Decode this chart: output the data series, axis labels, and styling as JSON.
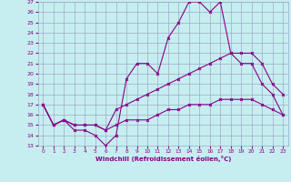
{
  "xlabel": "Windchill (Refroidissement éolien,°C)",
  "xlim": [
    -0.5,
    23.5
  ],
  "ylim": [
    13,
    27
  ],
  "xticks": [
    0,
    1,
    2,
    3,
    4,
    5,
    6,
    7,
    8,
    9,
    10,
    11,
    12,
    13,
    14,
    15,
    16,
    17,
    18,
    19,
    20,
    21,
    22,
    23
  ],
  "yticks": [
    13,
    14,
    15,
    16,
    17,
    18,
    19,
    20,
    21,
    22,
    23,
    24,
    25,
    26,
    27
  ],
  "bg_color": "#c6eef0",
  "grid_color": "#a0a8c8",
  "line_color": "#880088",
  "line1_x": [
    0,
    1,
    2,
    3,
    4,
    5,
    6,
    7,
    8,
    9,
    10,
    11,
    12,
    13,
    14,
    15,
    16,
    17,
    18,
    19,
    20,
    21,
    22,
    23
  ],
  "line1_y": [
    17,
    15,
    15.5,
    14.5,
    14.5,
    14,
    13,
    14,
    19.5,
    21,
    21,
    20,
    23.5,
    25,
    27,
    27,
    26,
    27,
    22,
    21,
    21,
    19,
    18,
    16
  ],
  "line2_x": [
    0,
    1,
    2,
    3,
    4,
    5,
    6,
    7,
    8,
    9,
    10,
    11,
    12,
    13,
    14,
    15,
    16,
    17,
    18,
    19,
    20,
    21,
    22,
    23
  ],
  "line2_y": [
    17,
    15,
    15.5,
    15,
    15,
    15,
    14.5,
    16.5,
    17,
    17.5,
    18,
    18.5,
    19,
    19.5,
    20,
    20.5,
    21,
    21.5,
    22,
    22,
    22,
    21,
    19,
    18
  ],
  "line3_x": [
    0,
    1,
    2,
    3,
    4,
    5,
    6,
    7,
    8,
    9,
    10,
    11,
    12,
    13,
    14,
    15,
    16,
    17,
    18,
    19,
    20,
    21,
    22,
    23
  ],
  "line3_y": [
    17,
    15,
    15.5,
    15,
    15,
    15,
    14.5,
    15,
    15.5,
    15.5,
    15.5,
    16,
    16.5,
    16.5,
    17,
    17,
    17,
    17.5,
    17.5,
    17.5,
    17.5,
    17,
    16.5,
    16
  ]
}
